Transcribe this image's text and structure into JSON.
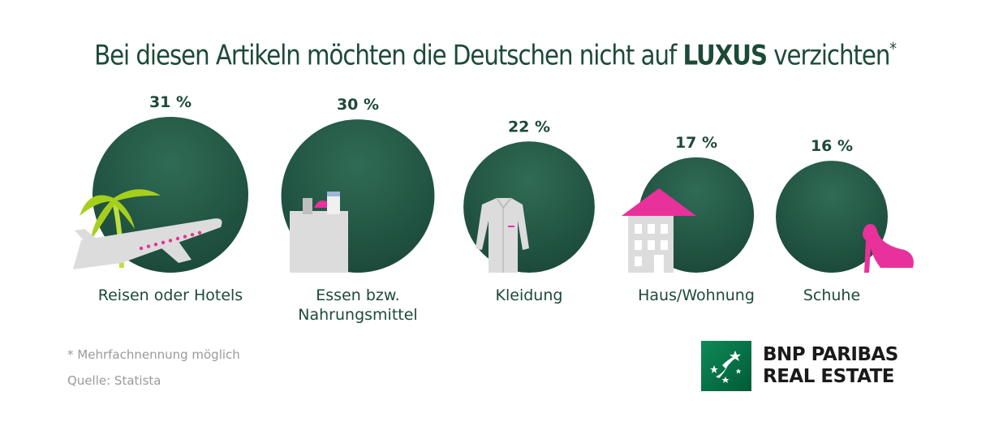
{
  "title": {
    "text_before": "Bei diesen Artikeln möchten die Deutschen nicht auf",
    "highlight": "LUXUS",
    "text_after": "verzichten",
    "asterisk": "*"
  },
  "chart_data": {
    "type": "bubble",
    "unit": "%",
    "categories": [
      {
        "label": [
          "Reisen oder Hotels"
        ],
        "value": 31,
        "value_label": "31 %",
        "icon": "airplane-palm-icon"
      },
      {
        "label": [
          "Essen bzw.",
          "Nahrungsmittel"
        ],
        "value": 30,
        "value_label": "30 %",
        "icon": "grocery-bag-icon"
      },
      {
        "label": [
          "Kleidung"
        ],
        "value": 22,
        "value_label": "22 %",
        "icon": "shirt-icon"
      },
      {
        "label": [
          "Haus/Wohnung"
        ],
        "value": 17,
        "value_label": "17 %",
        "icon": "house-icon"
      },
      {
        "label": [
          "Schuhe"
        ],
        "value": 16,
        "value_label": "16 %",
        "icon": "high-heel-icon"
      }
    ],
    "colors": {
      "bubble": "#1f5040",
      "bubble_light": "#2f6b55",
      "icon_gray": "#dcdcdc",
      "accent_pink": "#e8319a",
      "accent_green": "#a6cf1c"
    }
  },
  "footnotes": {
    "note": "* Mehrfachnennung möglich",
    "source": "Quelle: Statista"
  },
  "logo": {
    "line1": "BNP PARIBAS",
    "line2": "REAL ESTATE"
  }
}
